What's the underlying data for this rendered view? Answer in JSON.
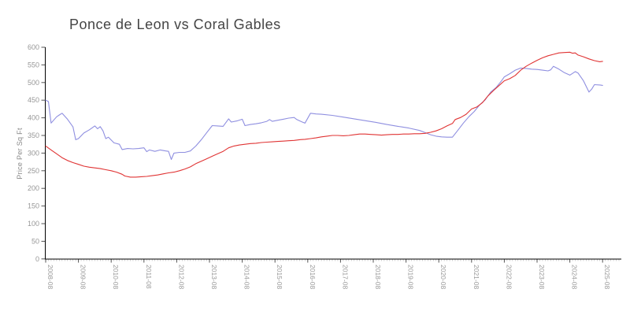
{
  "title": "Ponce de Leon vs Coral Gables",
  "chart_data": {
    "type": "line",
    "title": "Ponce de Leon vs Coral Gables",
    "xlabel": "",
    "ylabel": "Price Per Sq Ft",
    "ylim": [
      0,
      600
    ],
    "y_ticks": [
      0,
      50,
      100,
      150,
      200,
      250,
      300,
      350,
      400,
      450,
      500,
      550,
      600
    ],
    "x_ticks": [
      "2008-08",
      "2009-08",
      "2010-08",
      "2011-08",
      "2012-08",
      "2013-08",
      "2014-08",
      "2015-08",
      "2016-08",
      "2017-08",
      "2018-08",
      "2019-08",
      "2020-08",
      "2021-08",
      "2022-08",
      "2023-08",
      "2024-08",
      "2025-08"
    ],
    "x_minor_tick_interval": "monthly",
    "x_start": "2008-08",
    "x_end": "2025-08",
    "grid": false,
    "legend_position": "none",
    "axis_color": "#000000",
    "tick_label_color": "#979797",
    "series": [
      {
        "name": "Ponce de Leon",
        "color": "#8f8fe0",
        "points": [
          [
            "2008-08",
            450
          ],
          [
            "2008-09",
            446
          ],
          [
            "2008-10",
            385
          ],
          [
            "2008-11",
            394
          ],
          [
            "2008-12",
            403
          ],
          [
            "2009-01",
            408
          ],
          [
            "2009-02",
            413
          ],
          [
            "2009-04",
            396
          ],
          [
            "2009-06",
            374
          ],
          [
            "2009-07",
            338
          ],
          [
            "2009-08",
            341
          ],
          [
            "2009-10",
            357
          ],
          [
            "2009-12",
            366
          ],
          [
            "2010-02",
            377
          ],
          [
            "2010-03",
            369
          ],
          [
            "2010-04",
            375
          ],
          [
            "2010-05",
            363
          ],
          [
            "2010-06",
            341
          ],
          [
            "2010-07",
            345
          ],
          [
            "2010-09",
            329
          ],
          [
            "2010-11",
            325
          ],
          [
            "2010-12",
            310
          ],
          [
            "2011-02",
            313
          ],
          [
            "2011-04",
            312
          ],
          [
            "2011-06",
            313
          ],
          [
            "2011-08",
            315
          ],
          [
            "2011-09",
            304
          ],
          [
            "2011-10",
            309
          ],
          [
            "2011-12",
            305
          ],
          [
            "2012-02",
            309
          ],
          [
            "2012-04",
            306
          ],
          [
            "2012-05",
            305
          ],
          [
            "2012-06",
            282
          ],
          [
            "2012-07",
            300
          ],
          [
            "2012-09",
            302
          ],
          [
            "2012-11",
            302
          ],
          [
            "2013-01",
            306
          ],
          [
            "2013-03",
            320
          ],
          [
            "2013-05",
            338
          ],
          [
            "2013-07",
            358
          ],
          [
            "2013-09",
            378
          ],
          [
            "2013-11",
            377
          ],
          [
            "2014-01",
            376
          ],
          [
            "2014-03",
            397
          ],
          [
            "2014-04",
            388
          ],
          [
            "2014-06",
            391
          ],
          [
            "2014-08",
            396
          ],
          [
            "2014-09",
            378
          ],
          [
            "2014-11",
            381
          ],
          [
            "2015-01",
            383
          ],
          [
            "2015-03",
            386
          ],
          [
            "2015-05",
            390
          ],
          [
            "2015-06",
            395
          ],
          [
            "2015-07",
            390
          ],
          [
            "2015-09",
            393
          ],
          [
            "2015-11",
            396
          ],
          [
            "2016-01",
            399
          ],
          [
            "2016-03",
            401
          ],
          [
            "2016-04",
            395
          ],
          [
            "2016-06",
            388
          ],
          [
            "2016-07",
            385
          ],
          [
            "2016-09",
            413
          ],
          [
            "2016-11",
            411
          ],
          [
            "2017-01",
            410
          ],
          [
            "2017-05",
            407
          ],
          [
            "2017-09",
            402
          ],
          [
            "2018-01",
            397
          ],
          [
            "2018-05",
            392
          ],
          [
            "2018-09",
            387
          ],
          [
            "2019-01",
            381
          ],
          [
            "2019-05",
            376
          ],
          [
            "2019-09",
            371
          ],
          [
            "2020-01",
            364
          ],
          [
            "2020-03",
            358
          ],
          [
            "2020-05",
            352
          ],
          [
            "2020-07",
            348
          ],
          [
            "2020-09",
            346
          ],
          [
            "2020-11",
            345
          ],
          [
            "2021-01",
            345
          ],
          [
            "2021-03",
            365
          ],
          [
            "2021-05",
            385
          ],
          [
            "2021-07",
            403
          ],
          [
            "2021-09",
            418
          ],
          [
            "2021-11",
            437
          ],
          [
            "2022-01",
            451
          ],
          [
            "2022-03",
            473
          ],
          [
            "2022-05",
            486
          ],
          [
            "2022-07",
            505
          ],
          [
            "2022-08",
            516
          ],
          [
            "2022-10",
            525
          ],
          [
            "2022-12",
            535
          ],
          [
            "2023-02",
            541
          ],
          [
            "2023-04",
            540
          ],
          [
            "2023-06",
            538
          ],
          [
            "2023-08",
            537
          ],
          [
            "2023-10",
            535
          ],
          [
            "2023-12",
            533
          ],
          [
            "2024-01",
            536
          ],
          [
            "2024-02",
            546
          ],
          [
            "2024-04",
            538
          ],
          [
            "2024-06",
            528
          ],
          [
            "2024-08",
            521
          ],
          [
            "2024-10",
            531
          ],
          [
            "2024-11",
            527
          ],
          [
            "2025-01",
            505
          ],
          [
            "2025-03",
            473
          ],
          [
            "2025-04",
            481
          ],
          [
            "2025-05",
            494
          ],
          [
            "2025-07",
            493
          ],
          [
            "2025-08",
            492
          ]
        ]
      },
      {
        "name": "Coral Gables",
        "color": "#e03434",
        "points": [
          [
            "2008-08",
            320
          ],
          [
            "2008-10",
            309
          ],
          [
            "2008-12",
            298
          ],
          [
            "2009-02",
            287
          ],
          [
            "2009-04",
            279
          ],
          [
            "2009-06",
            273
          ],
          [
            "2009-08",
            268
          ],
          [
            "2009-10",
            263
          ],
          [
            "2009-12",
            260
          ],
          [
            "2010-02",
            258
          ],
          [
            "2010-04",
            256
          ],
          [
            "2010-06",
            253
          ],
          [
            "2010-08",
            250
          ],
          [
            "2010-10",
            246
          ],
          [
            "2010-12",
            240
          ],
          [
            "2011-01",
            235
          ],
          [
            "2011-03",
            232
          ],
          [
            "2011-05",
            232
          ],
          [
            "2011-07",
            233
          ],
          [
            "2011-09",
            234
          ],
          [
            "2011-11",
            236
          ],
          [
            "2012-01",
            238
          ],
          [
            "2012-03",
            241
          ],
          [
            "2012-05",
            244
          ],
          [
            "2012-07",
            246
          ],
          [
            "2012-09",
            250
          ],
          [
            "2012-11",
            255
          ],
          [
            "2013-01",
            261
          ],
          [
            "2013-03",
            270
          ],
          [
            "2013-05",
            277
          ],
          [
            "2013-07",
            284
          ],
          [
            "2013-09",
            291
          ],
          [
            "2013-11",
            298
          ],
          [
            "2014-01",
            305
          ],
          [
            "2014-03",
            315
          ],
          [
            "2014-05",
            320
          ],
          [
            "2014-07",
            323
          ],
          [
            "2014-09",
            325
          ],
          [
            "2014-11",
            327
          ],
          [
            "2015-01",
            328
          ],
          [
            "2015-03",
            330
          ],
          [
            "2015-05",
            331
          ],
          [
            "2015-07",
            332
          ],
          [
            "2015-09",
            333
          ],
          [
            "2015-11",
            334
          ],
          [
            "2016-01",
            335
          ],
          [
            "2016-03",
            336
          ],
          [
            "2016-05",
            338
          ],
          [
            "2016-07",
            339
          ],
          [
            "2016-09",
            341
          ],
          [
            "2016-11",
            343
          ],
          [
            "2017-01",
            346
          ],
          [
            "2017-03",
            348
          ],
          [
            "2017-05",
            350
          ],
          [
            "2017-07",
            350
          ],
          [
            "2017-09",
            349
          ],
          [
            "2017-11",
            350
          ],
          [
            "2018-01",
            352
          ],
          [
            "2018-03",
            354
          ],
          [
            "2018-05",
            354
          ],
          [
            "2018-07",
            353
          ],
          [
            "2018-09",
            352
          ],
          [
            "2018-11",
            351
          ],
          [
            "2019-01",
            352
          ],
          [
            "2019-03",
            353
          ],
          [
            "2019-05",
            353
          ],
          [
            "2019-07",
            354
          ],
          [
            "2019-09",
            354
          ],
          [
            "2019-11",
            355
          ],
          [
            "2020-01",
            355
          ],
          [
            "2020-03",
            356
          ],
          [
            "2020-05",
            359
          ],
          [
            "2020-07",
            363
          ],
          [
            "2020-09",
            369
          ],
          [
            "2020-11",
            377
          ],
          [
            "2021-01",
            384
          ],
          [
            "2021-02",
            395
          ],
          [
            "2021-04",
            401
          ],
          [
            "2021-06",
            410
          ],
          [
            "2021-08",
            425
          ],
          [
            "2021-10",
            431
          ],
          [
            "2021-12",
            443
          ],
          [
            "2022-02",
            462
          ],
          [
            "2022-04",
            477
          ],
          [
            "2022-06",
            491
          ],
          [
            "2022-08",
            505
          ],
          [
            "2022-10",
            511
          ],
          [
            "2022-12",
            520
          ],
          [
            "2023-02",
            535
          ],
          [
            "2023-04",
            546
          ],
          [
            "2023-06",
            555
          ],
          [
            "2023-08",
            563
          ],
          [
            "2023-10",
            570
          ],
          [
            "2023-12",
            576
          ],
          [
            "2024-02",
            580
          ],
          [
            "2024-04",
            584
          ],
          [
            "2024-06",
            585
          ],
          [
            "2024-08",
            586
          ],
          [
            "2024-09",
            583
          ],
          [
            "2024-10",
            584
          ],
          [
            "2024-11",
            578
          ],
          [
            "2025-01",
            573
          ],
          [
            "2025-03",
            567
          ],
          [
            "2025-05",
            562
          ],
          [
            "2025-07",
            559
          ],
          [
            "2025-08",
            560
          ]
        ]
      }
    ]
  }
}
